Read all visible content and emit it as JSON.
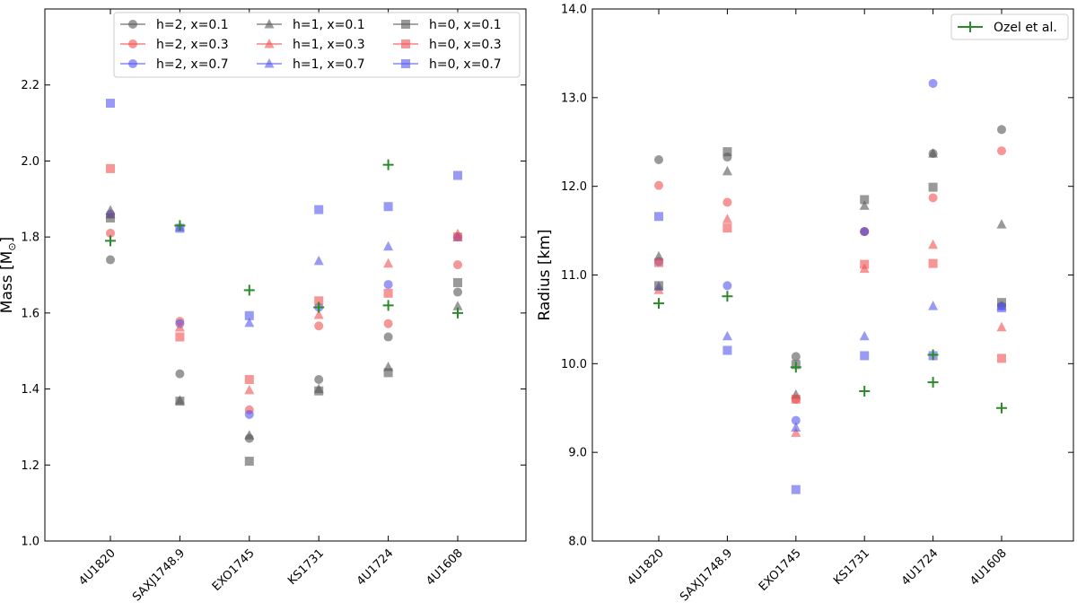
{
  "chart_data": [
    {
      "type": "scatter",
      "title": "",
      "xlabel": "",
      "ylabel": "Mass [M",
      "ylabel_sub": "⊙",
      "ylabel_close": "]",
      "categories": [
        "4U1820",
        "SAXJ1748.9",
        "EXO1745",
        "KS1731",
        "4U1724",
        "4U1608"
      ],
      "ylim": [
        1.0,
        2.4
      ],
      "yticks": [
        "1.0",
        "1.2",
        "1.4",
        "1.6",
        "1.8",
        "2.0",
        "2.2"
      ],
      "ytick_values": [
        1.0,
        1.2,
        1.4,
        1.6,
        1.8,
        2.0,
        2.2
      ],
      "legend_position": "top-center",
      "legend_columns": 3,
      "grid": false,
      "series": [
        {
          "name": "h=2, x=0.1",
          "marker": "circle",
          "color": "#555555",
          "values": [
            1.74,
            1.44,
            1.27,
            1.425,
            1.537,
            1.655
          ]
        },
        {
          "name": "h=2, x=0.3",
          "marker": "circle",
          "color": "#f05050",
          "values": [
            1.81,
            1.578,
            1.345,
            1.566,
            1.572,
            1.727
          ]
        },
        {
          "name": "h=2, x=0.7",
          "marker": "circle",
          "color": "#5555f0",
          "values": [
            1.86,
            1.572,
            1.333,
            1.615,
            1.675,
            1.8
          ]
        },
        {
          "name": "h=1, x=0.1",
          "marker": "triangle",
          "color": "#555555",
          "values": [
            1.87,
            1.37,
            1.278,
            1.4,
            1.458,
            1.618
          ]
        },
        {
          "name": "h=1, x=0.3",
          "marker": "triangle",
          "color": "#f05050",
          "values": [
            1.86,
            1.562,
            1.397,
            1.595,
            1.73,
            1.808
          ]
        },
        {
          "name": "h=1, x=0.7",
          "marker": "triangle",
          "color": "#5555f0",
          "values": [
            1.86,
            1.826,
            1.574,
            1.737,
            1.775,
            1.8
          ]
        },
        {
          "name": "h=0, x=0.1",
          "marker": "square",
          "color": "#555555",
          "values": [
            1.85,
            1.368,
            1.21,
            1.395,
            1.443,
            1.68
          ]
        },
        {
          "name": "h=0, x=0.3",
          "marker": "square",
          "color": "#f05050",
          "values": [
            1.98,
            1.537,
            1.425,
            1.632,
            1.652,
            1.8
          ]
        },
        {
          "name": "h=0, x=0.7",
          "marker": "square",
          "color": "#5555f0",
          "values": [
            2.152,
            1.823,
            1.593,
            1.872,
            1.88,
            1.962
          ]
        },
        {
          "marker": "plus",
          "color": "#2a8a2a",
          "values": [
            1.79,
            1.83,
            1.66,
            1.615,
            [
              1.99,
              1.62
            ],
            1.6
          ]
        }
      ]
    },
    {
      "type": "scatter",
      "title": "",
      "xlabel": "",
      "ylabel": "Radius [km]",
      "categories": [
        "4U1820",
        "SAXJ1748.9",
        "EXO1745",
        "KS1731",
        "4U1724",
        "4U1608"
      ],
      "ylim": [
        8.0,
        14.0
      ],
      "yticks": [
        "8.0",
        "9.0",
        "10.0",
        "11.0",
        "12.0",
        "13.0",
        "14.0"
      ],
      "ytick_values": [
        8.0,
        9.0,
        10.0,
        11.0,
        12.0,
        13.0,
        14.0
      ],
      "legend_position": "top-right",
      "grid": false,
      "series": [
        {
          "marker": "circle",
          "color": "#555555",
          "values": [
            12.3,
            12.33,
            10.08,
            11.49,
            12.37,
            12.64
          ]
        },
        {
          "marker": "circle",
          "color": "#f05050",
          "values": [
            12.01,
            11.82,
            9.6,
            11.49,
            11.87,
            12.4
          ]
        },
        {
          "marker": "circle",
          "color": "#5555f0",
          "values": [
            11.15,
            10.88,
            9.36,
            11.49,
            13.16,
            10.65
          ]
        },
        {
          "marker": "triangle",
          "color": "#555555",
          "values": [
            11.21,
            12.17,
            9.65,
            11.78,
            12.37,
            11.57
          ]
        },
        {
          "marker": "triangle",
          "color": "#f05050",
          "values": [
            10.83,
            11.63,
            9.22,
            11.07,
            11.34,
            10.41
          ]
        },
        {
          "marker": "triangle",
          "color": "#5555f0",
          "values": [
            10.87,
            10.31,
            9.28,
            10.31,
            10.65,
            10.65
          ]
        },
        {
          "marker": "square",
          "color": "#555555",
          "values": [
            10.88,
            12.39,
            9.99,
            11.85,
            11.99,
            10.69
          ]
        },
        {
          "marker": "square",
          "color": "#f05050",
          "values": [
            11.14,
            11.53,
            9.6,
            11.12,
            11.13,
            10.06
          ]
        },
        {
          "marker": "square",
          "color": "#5555f0",
          "values": [
            11.66,
            10.15,
            8.58,
            10.09,
            10.09,
            10.63
          ]
        },
        {
          "name": "Ozel et al.",
          "marker": "plus",
          "color": "#2a8a2a",
          "values": [
            10.68,
            10.76,
            9.96,
            9.69,
            [
              10.1,
              9.79
            ],
            9.5
          ]
        }
      ]
    }
  ]
}
